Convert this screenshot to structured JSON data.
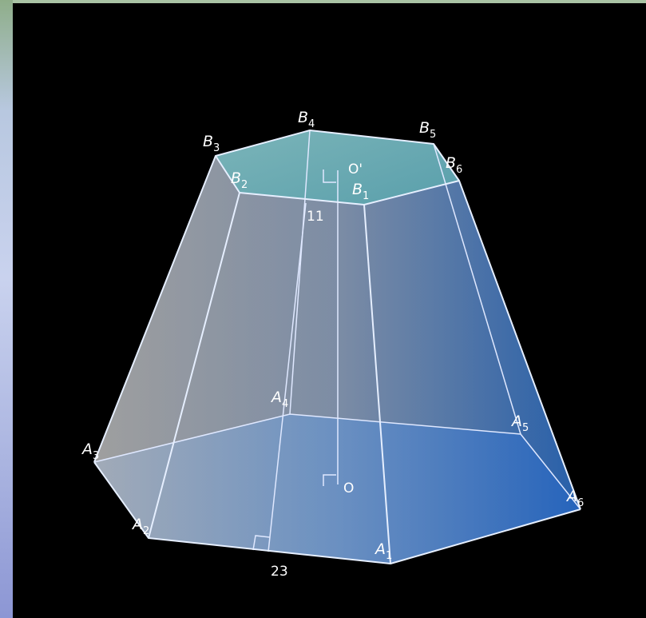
{
  "colors": {
    "background": "#000000",
    "top_face": "#6fb0b4",
    "bottom_face": "#3f85d8",
    "left_face": "#9a9a9a",
    "right_face": "#2a6ab5",
    "edge": "#e6efff"
  },
  "labels": {
    "bottom_vertices": [
      {
        "letter": "A",
        "index": "1"
      },
      {
        "letter": "A",
        "index": "2"
      },
      {
        "letter": "A",
        "index": "3"
      },
      {
        "letter": "A",
        "index": "4"
      },
      {
        "letter": "A",
        "index": "5"
      },
      {
        "letter": "A",
        "index": "6"
      }
    ],
    "top_vertices": [
      {
        "letter": "B",
        "index": "1"
      },
      {
        "letter": "B",
        "index": "2"
      },
      {
        "letter": "B",
        "index": "3"
      },
      {
        "letter": "B",
        "index": "4"
      },
      {
        "letter": "B",
        "index": "5"
      },
      {
        "letter": "B",
        "index": "6"
      }
    ],
    "top_center": "O'",
    "bottom_center": "O",
    "top_edge_length": "11",
    "bottom_edge_length": "23"
  }
}
